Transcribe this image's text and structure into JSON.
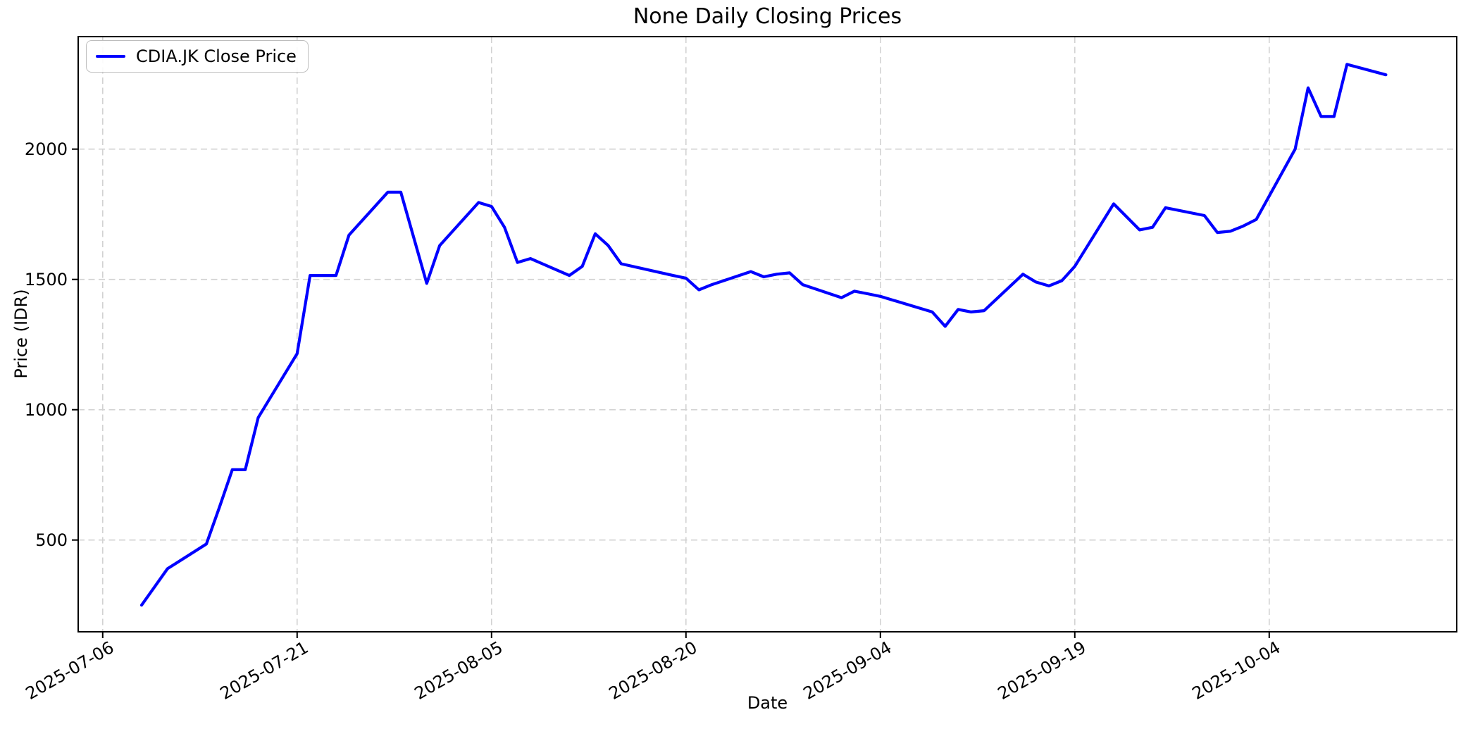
{
  "colors": {
    "line": "#0000ff",
    "grid": "#d2d2d2",
    "spine": "#000000",
    "text": "#000000",
    "legend_border": "#bdbdbd",
    "background": "#ffffff"
  },
  "chart_data": {
    "type": "line",
    "title": "None Daily Closing Prices",
    "xlabel": "Date",
    "ylabel": "Price (IDR)",
    "grid": true,
    "legend_position": "upper left",
    "ylim": [
      147,
      2437
    ],
    "y_ticks": [
      500,
      1000,
      1500,
      2000
    ],
    "x_ticks": [
      "2025-07-06",
      "2025-07-21",
      "2025-08-05",
      "2025-08-20",
      "2025-09-04",
      "2025-09-19",
      "2025-10-04"
    ],
    "series": [
      {
        "name": "CDIA.JK Close Price",
        "color": "#0000ff",
        "x": [
          "2025-07-09",
          "2025-07-10",
          "2025-07-11",
          "2025-07-14",
          "2025-07-15",
          "2025-07-16",
          "2025-07-17",
          "2025-07-18",
          "2025-07-21",
          "2025-07-22",
          "2025-07-23",
          "2025-07-24",
          "2025-07-25",
          "2025-07-28",
          "2025-07-29",
          "2025-07-30",
          "2025-07-31",
          "2025-08-01",
          "2025-08-04",
          "2025-08-05",
          "2025-08-06",
          "2025-08-07",
          "2025-08-08",
          "2025-08-11",
          "2025-08-12",
          "2025-08-13",
          "2025-08-14",
          "2025-08-15",
          "2025-08-19",
          "2025-08-20",
          "2025-08-21",
          "2025-08-22",
          "2025-08-25",
          "2025-08-26",
          "2025-08-27",
          "2025-08-28",
          "2025-08-29",
          "2025-09-01",
          "2025-09-02",
          "2025-09-03",
          "2025-09-04",
          "2025-09-08",
          "2025-09-09",
          "2025-09-10",
          "2025-09-11",
          "2025-09-12",
          "2025-09-15",
          "2025-09-16",
          "2025-09-17",
          "2025-09-18",
          "2025-09-19",
          "2025-09-22",
          "2025-09-23",
          "2025-09-24",
          "2025-09-25",
          "2025-09-26",
          "2025-09-29",
          "2025-09-30",
          "2025-10-01",
          "2025-10-02",
          "2025-10-03",
          "2025-10-06",
          "2025-10-07",
          "2025-10-08",
          "2025-10-09",
          "2025-10-10",
          "2025-10-13"
        ],
        "y": [
          250,
          320,
          390,
          485,
          625,
          770,
          770,
          970,
          1215,
          1515,
          1515,
          1515,
          1670,
          1835,
          1835,
          1660,
          1485,
          1630,
          1795,
          1780,
          1700,
          1565,
          1580,
          1515,
          1550,
          1675,
          1630,
          1560,
          1515,
          1505,
          1460,
          1480,
          1530,
          1510,
          1520,
          1525,
          1480,
          1430,
          1455,
          1445,
          1435,
          1375,
          1320,
          1385,
          1375,
          1380,
          1520,
          1490,
          1475,
          1495,
          1550,
          1790,
          1740,
          1690,
          1700,
          1775,
          1745,
          1680,
          1685,
          1705,
          1730,
          2000,
          2235,
          2125,
          2125,
          2325,
          2285
        ]
      }
    ]
  }
}
